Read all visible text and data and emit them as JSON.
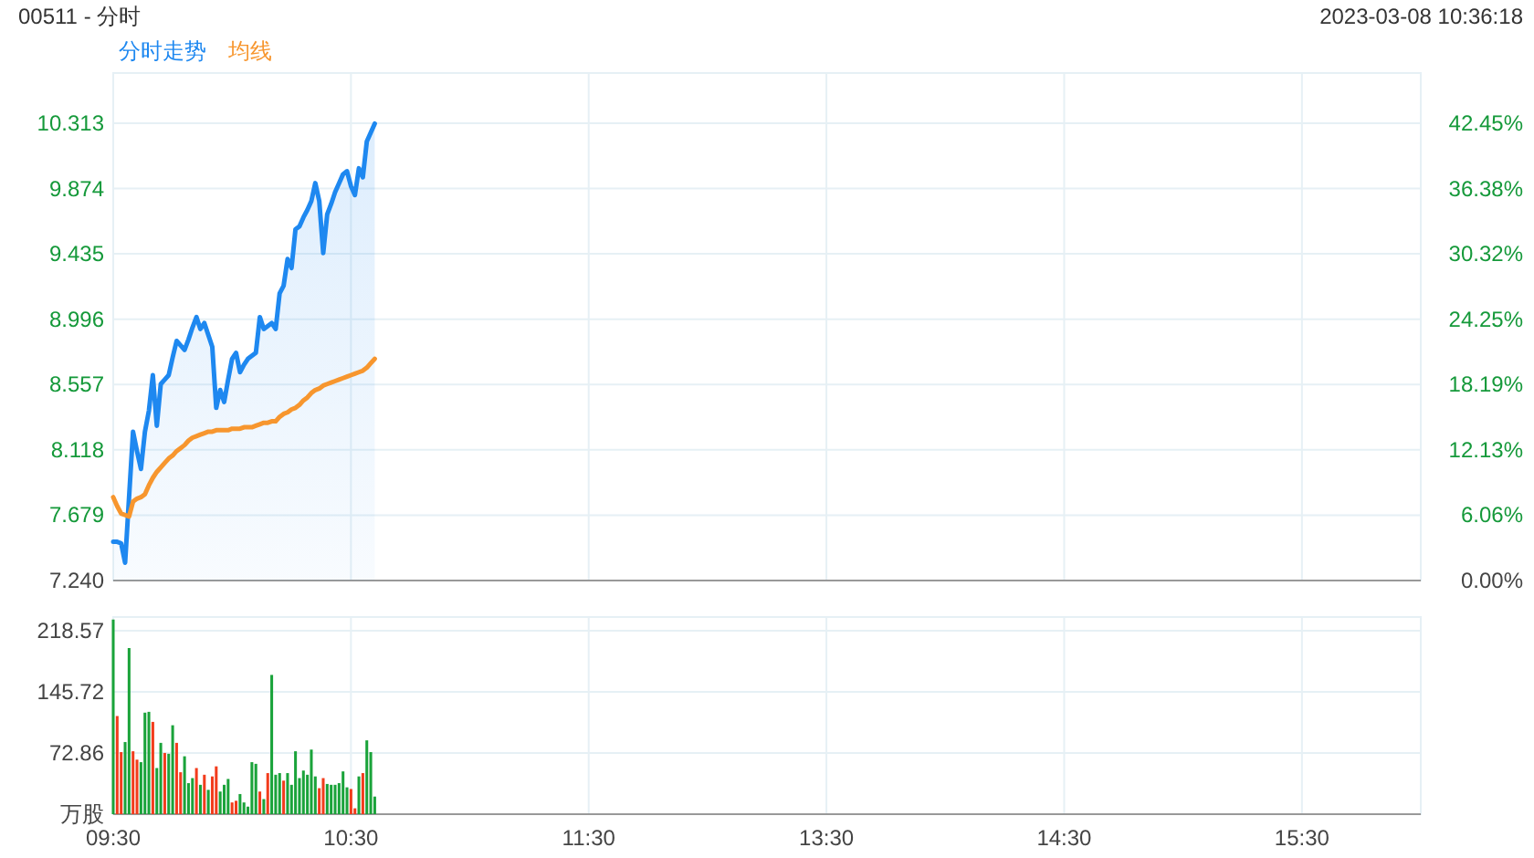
{
  "chart_data": [
    {
      "type": "line",
      "title": "00511 - 分时",
      "subtitle": "2023-03-08 10:36:18",
      "legend": "top left",
      "grid": true,
      "tick_labels": "y",
      "categories": [
        null,
        null,
        null,
        null,
        null,
        null,
        null,
        null,
        null,
        null,
        null,
        null,
        null,
        null,
        null,
        null,
        null,
        null,
        null,
        null,
        null,
        null,
        null,
        null,
        null,
        null,
        null,
        null,
        null,
        null,
        null,
        null,
        null,
        null,
        null,
        null,
        null,
        null,
        null,
        null,
        null,
        null,
        null,
        null,
        null,
        null,
        null,
        null,
        null,
        null,
        null,
        null,
        null,
        null,
        null,
        null,
        null,
        null,
        null,
        null,
        null,
        null,
        null,
        null,
        null,
        null,
        null,
        null,
        null,
        null,
        null,
        null,
        null,
        null,
        null,
        null,
        null,
        null,
        null,
        null,
        null,
        null,
        null,
        null,
        null,
        null,
        null,
        null,
        null,
        null,
        null,
        null,
        null,
        null,
        null,
        null,
        null,
        null,
        null,
        null,
        null,
        null,
        null,
        null,
        null,
        null,
        null,
        null,
        null,
        null,
        null,
        null,
        null,
        null,
        null,
        null,
        null,
        null,
        null,
        null,
        null,
        null,
        null,
        null,
        null,
        null,
        null,
        null,
        null,
        null,
        null,
        null,
        null,
        null,
        null,
        null,
        null,
        null,
        null,
        null,
        null,
        null,
        null,
        null,
        null,
        null,
        null,
        null,
        null,
        null,
        null,
        null,
        null,
        null,
        null,
        null,
        null,
        null,
        null,
        null,
        null,
        null,
        null,
        null,
        null,
        null,
        null,
        null,
        null,
        null,
        null,
        null,
        null,
        null,
        null,
        null,
        null,
        null,
        null,
        null,
        null,
        null,
        null,
        null,
        null,
        null,
        null,
        null,
        null,
        null,
        null,
        null,
        null,
        null,
        null,
        null,
        null,
        null,
        null,
        null,
        null,
        null,
        null,
        null,
        null,
        null,
        null,
        null,
        null,
        null,
        null,
        null,
        null,
        null,
        null,
        null,
        null,
        null,
        null,
        null,
        null,
        null,
        null,
        null,
        null,
        null,
        null,
        null,
        null,
        null,
        null,
        null,
        null,
        null,
        null,
        null,
        null,
        null,
        null,
        null,
        null,
        null,
        null,
        null,
        null,
        null,
        null,
        null,
        null,
        null,
        null,
        null,
        null,
        null,
        null,
        null,
        null,
        null,
        null,
        null,
        null,
        null,
        null,
        null,
        null,
        null,
        null,
        null,
        null,
        null,
        null,
        null,
        null,
        null,
        null,
        null,
        null,
        null,
        null,
        null,
        null,
        null,
        null,
        null,
        null,
        null,
        null,
        null,
        null,
        null,
        null,
        null,
        null,
        null,
        null,
        null,
        null,
        null,
        null,
        null,
        null,
        null,
        null,
        null,
        null,
        null,
        null,
        null,
        null,
        null,
        null,
        null,
        null,
        null,
        null,
        null,
        null,
        null,
        null,
        null,
        null,
        null,
        null,
        null,
        null,
        null,
        null,
        null,
        null,
        null,
        null
      ],
      "ylim": [
        7.24,
        10.65
      ],
      "yticks": [
        {
          "value": 7.24,
          "label": "7.240"
        },
        7.679,
        8.118,
        8.557,
        8.996,
        9.435,
        9.874,
        10.313
      ],
      "y2lim": [
        0,
        47.1
      ],
      "y2ticks": [
        {
          "value": 0,
          "label": "0.00%"
        },
        {
          "value": 6.06,
          "label": "6.06%"
        },
        {
          "value": 12.13,
          "label": "12.13%"
        },
        {
          "value": 18.19,
          "label": "18.19%"
        },
        {
          "value": 24.25,
          "label": "24.25%"
        },
        {
          "value": 30.32,
          "label": "30.32%"
        },
        {
          "value": 36.38,
          "label": "36.38%"
        },
        {
          "value": 42.45,
          "label": "42.45%"
        }
      ],
      "series": [
        {
          "name": "分时走势",
          "type": "area",
          "color": "#1e88f0",
          "values": [
            7.5,
            7.5,
            7.49,
            7.36,
            7.8,
            8.24,
            8.11,
            7.99,
            8.24,
            8.38,
            8.62,
            8.28,
            8.56,
            8.59,
            8.62,
            8.74,
            8.85,
            8.82,
            8.79,
            8.86,
            8.94,
            9.01,
            8.93,
            8.97,
            8.89,
            8.81,
            8.4,
            8.52,
            8.44,
            8.59,
            8.73,
            8.77,
            8.64,
            8.69,
            8.73,
            8.75,
            8.77,
            9.01,
            8.93,
            8.95,
            8.97,
            8.93,
            9.17,
            9.22,
            9.4,
            9.34,
            9.6,
            9.62,
            9.68,
            9.73,
            9.79,
            9.91,
            9.79,
            9.44,
            9.7,
            9.77,
            9.85,
            9.91,
            9.97,
            9.99,
            9.89,
            9.83,
            10.01,
            9.95,
            10.19,
            10.25,
            10.31,
            null,
            null,
            null,
            null,
            null,
            null,
            null,
            null,
            null,
            null,
            null,
            null,
            null,
            null,
            null,
            null,
            null,
            null,
            null,
            null,
            null,
            null,
            null,
            null,
            null,
            null,
            null,
            null,
            null,
            null,
            null,
            null,
            null,
            null,
            null,
            null,
            null,
            null,
            null,
            null,
            null,
            null,
            null,
            null,
            null,
            null,
            null,
            null,
            null,
            null,
            null,
            null,
            null,
            null,
            null,
            null,
            null,
            null,
            null,
            null,
            null,
            null,
            null,
            null,
            null,
            null,
            null,
            null,
            null,
            null,
            null,
            null,
            null,
            null,
            null,
            null,
            null,
            null,
            null,
            null,
            null,
            null,
            null,
            null,
            null,
            null,
            null,
            null,
            null,
            null,
            null,
            null,
            null,
            null,
            null,
            null,
            null,
            null,
            null,
            null,
            null,
            null,
            null,
            null,
            null,
            null,
            null,
            null,
            null,
            null,
            null,
            null,
            null,
            null,
            null,
            null,
            null,
            null,
            null,
            null,
            null,
            null,
            null,
            null,
            null,
            null,
            null,
            null,
            null,
            null,
            null,
            null,
            null,
            null,
            null,
            null,
            null,
            null,
            null,
            null,
            null,
            null,
            null,
            null,
            null,
            null,
            null,
            null,
            null,
            null,
            null,
            null,
            null,
            null,
            null,
            null,
            null,
            null,
            null,
            null,
            null,
            null,
            null,
            null,
            null,
            null,
            null,
            null,
            null,
            null,
            null,
            null,
            null,
            null,
            null,
            null,
            null,
            null,
            null,
            null,
            null,
            null,
            null,
            null,
            null,
            null,
            null,
            null,
            null,
            null,
            null,
            null,
            null,
            null,
            null,
            null,
            null,
            null,
            null,
            null,
            null,
            null,
            null,
            null,
            null,
            null,
            null,
            null,
            null,
            null,
            null,
            null,
            null,
            null,
            null,
            null,
            null,
            null,
            null,
            null,
            null,
            null,
            null,
            null,
            null,
            null,
            null,
            null,
            null,
            null,
            null,
            null,
            null,
            null,
            null,
            null,
            null,
            null,
            null,
            null,
            null,
            null,
            null,
            null,
            null,
            null,
            null,
            null,
            null,
            null,
            null,
            null,
            null,
            null,
            null,
            null,
            null,
            null,
            null,
            null,
            null,
            null,
            null,
            null
          ]
        },
        {
          "name": "均线",
          "type": "line",
          "color": "#f7962e",
          "values": [
            7.8,
            7.74,
            7.69,
            7.68,
            7.67,
            7.77,
            7.79,
            7.8,
            7.82,
            7.88,
            7.93,
            7.97,
            8,
            8.03,
            8.06,
            8.08,
            8.11,
            8.13,
            8.15,
            8.18,
            8.2,
            8.21,
            8.22,
            8.23,
            8.24,
            8.24,
            8.25,
            8.25,
            8.25,
            8.25,
            8.26,
            8.26,
            8.26,
            8.27,
            8.27,
            8.27,
            8.28,
            8.29,
            8.3,
            8.3,
            8.31,
            8.31,
            8.34,
            8.36,
            8.37,
            8.39,
            8.4,
            8.42,
            8.45,
            8.47,
            8.5,
            8.52,
            8.53,
            8.55,
            8.56,
            8.57,
            8.58,
            8.59,
            8.6,
            8.61,
            8.62,
            8.63,
            8.64,
            8.65,
            8.67,
            8.7,
            8.73,
            null,
            null,
            null,
            null,
            null,
            null,
            null,
            null,
            null,
            null,
            null,
            null,
            null,
            null,
            null,
            null,
            null,
            null,
            null,
            null,
            null,
            null,
            null,
            null,
            null,
            null,
            null,
            null,
            null,
            null,
            null,
            null,
            null,
            null,
            null,
            null,
            null,
            null,
            null,
            null,
            null,
            null,
            null,
            null,
            null,
            null,
            null,
            null,
            null,
            null,
            null,
            null,
            null,
            null,
            null,
            null,
            null,
            null,
            null,
            null,
            null,
            null,
            null,
            null,
            null,
            null,
            null,
            null,
            null,
            null,
            null,
            null,
            null,
            null,
            null,
            null,
            null,
            null,
            null,
            null,
            null,
            null,
            null,
            null,
            null,
            null,
            null,
            null,
            null,
            null,
            null,
            null,
            null,
            null,
            null,
            null,
            null,
            null,
            null,
            null,
            null,
            null,
            null,
            null,
            null,
            null,
            null,
            null,
            null,
            null,
            null,
            null,
            null,
            null,
            null,
            null,
            null,
            null,
            null,
            null,
            null,
            null,
            null,
            null,
            null,
            null,
            null,
            null,
            null,
            null,
            null,
            null,
            null,
            null,
            null,
            null,
            null,
            null,
            null,
            null,
            null,
            null,
            null,
            null,
            null,
            null,
            null,
            null,
            null,
            null,
            null,
            null,
            null,
            null,
            null,
            null,
            null,
            null,
            null,
            null,
            null,
            null,
            null,
            null,
            null,
            null,
            null,
            null,
            null,
            null,
            null,
            null,
            null,
            null,
            null,
            null,
            null,
            null,
            null,
            null,
            null,
            null,
            null,
            null,
            null,
            null,
            null,
            null,
            null,
            null,
            null,
            null,
            null,
            null,
            null,
            null,
            null,
            null,
            null,
            null,
            null,
            null,
            null,
            null,
            null,
            null,
            null,
            null,
            null,
            null,
            null,
            null,
            null,
            null,
            null,
            null,
            null,
            null,
            null,
            null,
            null,
            null,
            null,
            null,
            null,
            null,
            null,
            null,
            null,
            null,
            null,
            null,
            null,
            null,
            null,
            null,
            null,
            null,
            null,
            null,
            null,
            null,
            null,
            null,
            null,
            null,
            null,
            null,
            null,
            null,
            null,
            null,
            null,
            null,
            null,
            null,
            null,
            null,
            null,
            null,
            null,
            null,
            null,
            null
          ]
        }
      ]
    },
    {
      "type": "bar",
      "grid": true,
      "categories": [
        "09:30",
        null,
        null,
        null,
        null,
        null,
        null,
        null,
        null,
        null,
        null,
        null,
        null,
        null,
        null,
        null,
        null,
        null,
        null,
        null,
        null,
        null,
        null,
        null,
        null,
        null,
        null,
        null,
        null,
        null,
        null,
        null,
        null,
        null,
        null,
        null,
        null,
        null,
        null,
        null,
        null,
        null,
        null,
        null,
        null,
        null,
        null,
        null,
        null,
        null,
        null,
        null,
        null,
        null,
        null,
        null,
        null,
        null,
        null,
        null,
        "10:30",
        null,
        null,
        null,
        null,
        null,
        null,
        null,
        null,
        null,
        null,
        null,
        null,
        null,
        null,
        null,
        null,
        null,
        null,
        null,
        null,
        null,
        null,
        null,
        null,
        null,
        null,
        null,
        null,
        null,
        null,
        null,
        null,
        null,
        null,
        null,
        null,
        null,
        null,
        null,
        null,
        null,
        null,
        null,
        null,
        null,
        null,
        null,
        null,
        null,
        null,
        null,
        null,
        null,
        null,
        null,
        null,
        null,
        null,
        null,
        "11:30",
        null,
        null,
        null,
        null,
        null,
        null,
        null,
        null,
        null,
        null,
        null,
        null,
        null,
        null,
        null,
        null,
        null,
        null,
        null,
        null,
        null,
        null,
        null,
        null,
        null,
        null,
        null,
        null,
        null,
        null,
        null,
        null,
        null,
        null,
        null,
        null,
        null,
        null,
        null,
        null,
        null,
        null,
        null,
        null,
        null,
        null,
        null,
        null,
        null,
        null,
        null,
        null,
        null,
        null,
        null,
        null,
        null,
        null,
        null,
        "13:30",
        null,
        null,
        null,
        null,
        null,
        null,
        null,
        null,
        null,
        null,
        null,
        null,
        null,
        null,
        null,
        null,
        null,
        null,
        null,
        null,
        null,
        null,
        null,
        null,
        null,
        null,
        null,
        null,
        null,
        null,
        null,
        null,
        null,
        null,
        null,
        null,
        null,
        null,
        null,
        null,
        null,
        null,
        null,
        null,
        null,
        null,
        null,
        null,
        null,
        null,
        null,
        null,
        null,
        null,
        null,
        null,
        null,
        null,
        null,
        "14:30",
        null,
        null,
        null,
        null,
        null,
        null,
        null,
        null,
        null,
        null,
        null,
        null,
        null,
        null,
        null,
        null,
        null,
        null,
        null,
        null,
        null,
        null,
        null,
        null,
        null,
        null,
        null,
        null,
        null,
        null,
        null,
        null,
        null,
        null,
        null,
        null,
        null,
        null,
        null,
        null,
        null,
        null,
        null,
        null,
        null,
        null,
        null,
        null,
        null,
        null,
        null,
        null,
        null,
        null,
        null,
        null,
        null,
        null,
        null,
        "15:30",
        null,
        null,
        null,
        null,
        null,
        null,
        null,
        null,
        null,
        null,
        null,
        null,
        null,
        null,
        null,
        null,
        null,
        null,
        null,
        null,
        null,
        null,
        null,
        null,
        null,
        null,
        null,
        null,
        null,
        null
      ],
      "ylim": [
        0,
        235
      ],
      "yticks": [
        {
          "value": 0,
          "label": "万股"
        },
        72.86,
        145.72,
        218.57
      ],
      "values": [
        232,
        117,
        74,
        86,
        198,
        75,
        65,
        62,
        121,
        122,
        110,
        55,
        85,
        73,
        72,
        106,
        85,
        50,
        69,
        37,
        43,
        55,
        35,
        47,
        29,
        45,
        57,
        27,
        35,
        42,
        14,
        16,
        24,
        14,
        9,
        62,
        60,
        27,
        18,
        49,
        166,
        47,
        49,
        40,
        49,
        35,
        75,
        43,
        52,
        47,
        77,
        45,
        31,
        43,
        36,
        35,
        35,
        37,
        51,
        32,
        30,
        7,
        45,
        49,
        88,
        74,
        21,
        null,
        null,
        null,
        null,
        null,
        null,
        null,
        null,
        null,
        null,
        null,
        null,
        null,
        null,
        null,
        null,
        null,
        null,
        null,
        null,
        null,
        null,
        null,
        null,
        null,
        null,
        null,
        null,
        null,
        null,
        null,
        null,
        null,
        null,
        null,
        null,
        null,
        null,
        null,
        null,
        null,
        null,
        null,
        null,
        null,
        null,
        null,
        null,
        null,
        null,
        null,
        null,
        null,
        null,
        null,
        null,
        null,
        null,
        null,
        null,
        null,
        null,
        null,
        null,
        null,
        null,
        null,
        null,
        null,
        null,
        null,
        null,
        null,
        null,
        null,
        null,
        null,
        null,
        null,
        null,
        null,
        null,
        null,
        null,
        null,
        null,
        null,
        null,
        null,
        null,
        null,
        null,
        null,
        null,
        null,
        null,
        null,
        null,
        null,
        null,
        null,
        null,
        null,
        null,
        null,
        null,
        null,
        null,
        null,
        null,
        null,
        null,
        null,
        null,
        null,
        null,
        null,
        null,
        null,
        null,
        null,
        null,
        null,
        null,
        null,
        null,
        null,
        null,
        null,
        null,
        null,
        null,
        null,
        null,
        null,
        null,
        null,
        null,
        null,
        null,
        null,
        null,
        null,
        null,
        null,
        null,
        null,
        null,
        null,
        null,
        null,
        null,
        null,
        null,
        null,
        null,
        null,
        null,
        null,
        null,
        null,
        null,
        null,
        null,
        null,
        null,
        null,
        null,
        null,
        null,
        null,
        null,
        null,
        null,
        null,
        null,
        null,
        null,
        null,
        null,
        null,
        null,
        null,
        null,
        null,
        null,
        null,
        null,
        null,
        null,
        null,
        null,
        null,
        null,
        null,
        null,
        null,
        null,
        null,
        null,
        null,
        null,
        null,
        null,
        null,
        null,
        null,
        null,
        null,
        null,
        null,
        null,
        null,
        null,
        null,
        null,
        null,
        null,
        null,
        null,
        null,
        null,
        null,
        null,
        null,
        null,
        null,
        null,
        null,
        null,
        null,
        null,
        null,
        null,
        null,
        null,
        null,
        null,
        null,
        null,
        null,
        null,
        null,
        null,
        null,
        null,
        null,
        null,
        null,
        null,
        null,
        null,
        null,
        null,
        null,
        null,
        null,
        null,
        null,
        null,
        null,
        null,
        null,
        null
      ],
      "colors": [
        "#1aa33a",
        "#f23c1c",
        "#f23c1c",
        "#1aa33a",
        "#1aa33a",
        "#f23c1c",
        "#f23c1c",
        "#1aa33a",
        "#1aa33a",
        "#1aa33a",
        "#f23c1c",
        "#1aa33a",
        "#1aa33a",
        "#f23c1c",
        "#1aa33a",
        "#1aa33a",
        "#f23c1c",
        "#f23c1c",
        "#1aa33a",
        "#1aa33a",
        "#1aa33a",
        "#f23c1c",
        "#1aa33a",
        "#f23c1c",
        "#1aa33a",
        "#f23c1c",
        "#f23c1c",
        "#1aa33a",
        "#1aa33a",
        "#1aa33a",
        "#f23c1c",
        "#f23c1c",
        "#1aa33a",
        "#1aa33a",
        "#1aa33a",
        "#1aa33a",
        "#1aa33a",
        "#f23c1c",
        "#1aa33a",
        "#f23c1c",
        "#1aa33a",
        "#1aa33a",
        "#1aa33a",
        "#f23c1c",
        "#1aa33a",
        "#1aa33a",
        "#1aa33a",
        "#1aa33a",
        "#1aa33a",
        "#1aa33a",
        "#1aa33a",
        "#1aa33a",
        "#f23c1c",
        "#f23c1c",
        "#1aa33a",
        "#1aa33a",
        "#1aa33a",
        "#1aa33a",
        "#1aa33a",
        "#1aa33a",
        "#f23c1c",
        "#f23c1c",
        "#1aa33a",
        "#f23c1c",
        "#1aa33a",
        "#1aa33a",
        "#1aa33a",
        null,
        null,
        null,
        null,
        null,
        null,
        null,
        null,
        null,
        null,
        null,
        null,
        null,
        null,
        null,
        null,
        null,
        null,
        null,
        null,
        null,
        null,
        null,
        null,
        null,
        null,
        null,
        null,
        null,
        null,
        null,
        null,
        null,
        null,
        null,
        null,
        null,
        null,
        null,
        null,
        null,
        null,
        null,
        null,
        null,
        null,
        null,
        null,
        null,
        null,
        null,
        null,
        null,
        null,
        null,
        null,
        null,
        null,
        null,
        null,
        null,
        null,
        null,
        null,
        null,
        null,
        null,
        null,
        null,
        null,
        null,
        null,
        null,
        null,
        null,
        null,
        null,
        null,
        null,
        null,
        null,
        null,
        null,
        null,
        null,
        null,
        null,
        null,
        null,
        null,
        null,
        null,
        null,
        null,
        null,
        null,
        null,
        null,
        null,
        null,
        null,
        null,
        null,
        null,
        null,
        null,
        null,
        null,
        null,
        null,
        null,
        null,
        null,
        null,
        null,
        null,
        null,
        null,
        null,
        null,
        null,
        null,
        null,
        null,
        null,
        null,
        null,
        null,
        null,
        null,
        null,
        null,
        null,
        null,
        null,
        null,
        null,
        null,
        null,
        null,
        null,
        null,
        null,
        null,
        null,
        null,
        null,
        null,
        null,
        null,
        null,
        null,
        null,
        null,
        null,
        null,
        null,
        null,
        null,
        null,
        null,
        null,
        null,
        null,
        null,
        null,
        null,
        null,
        null,
        null,
        null,
        null,
        null,
        null,
        null,
        null,
        null,
        null,
        null,
        null,
        null,
        null,
        null,
        null,
        null,
        null,
        null,
        null,
        null,
        null,
        null,
        null,
        null,
        null,
        null,
        null,
        null,
        null,
        null,
        null,
        null,
        null,
        null,
        null,
        null,
        null,
        null,
        null,
        null,
        null,
        null,
        null,
        null,
        null,
        null,
        null,
        null,
        null,
        null,
        null,
        null,
        null,
        null,
        null,
        null,
        null,
        null,
        null,
        null,
        null,
        null,
        null,
        null,
        null,
        null,
        null,
        null,
        null,
        null,
        null,
        null,
        null,
        null,
        null,
        null,
        null,
        null,
        null,
        null,
        null,
        null,
        null,
        null,
        null,
        null,
        null,
        null,
        null,
        null,
        null,
        null,
        null,
        null,
        null
      ]
    }
  ]
}
